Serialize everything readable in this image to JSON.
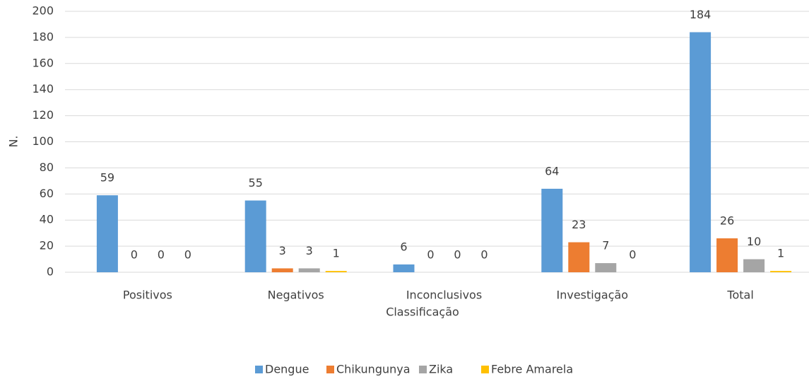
{
  "chart_data": {
    "type": "bar",
    "x_label": "Classificação",
    "y_label": "N.",
    "categories": [
      "Positivos",
      "Negativos",
      "Inconclusivos",
      "Investigação",
      "Total"
    ],
    "series": [
      {
        "name": "Dengue",
        "color": "#5b9bd5",
        "values": [
          59,
          55,
          6,
          64,
          184
        ]
      },
      {
        "name": "Chikungunya",
        "color": "#ed7d31",
        "values": [
          0,
          3,
          0,
          23,
          26
        ]
      },
      {
        "name": "Zika",
        "color": "#a5a5a5",
        "values": [
          0,
          3,
          0,
          7,
          10
        ]
      },
      {
        "name": "Febre Amarela",
        "color": "#ffc000",
        "values": [
          0,
          1,
          0,
          0,
          1
        ]
      }
    ],
    "ylim": [
      0,
      200
    ],
    "yticks": [
      0,
      20,
      40,
      60,
      80,
      100,
      120,
      140,
      160,
      180,
      200
    ],
    "grid": true,
    "legend": "bottom"
  }
}
